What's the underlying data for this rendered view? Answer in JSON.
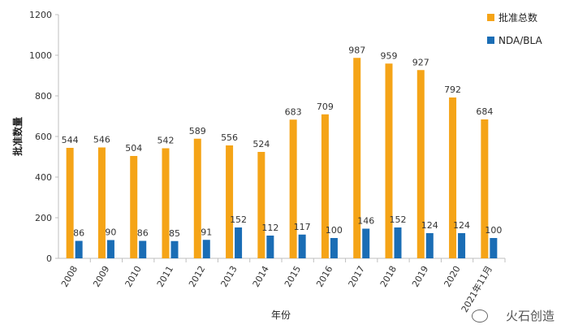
{
  "chart_data": {
    "type": "bar",
    "categories": [
      "2008",
      "2009",
      "2010",
      "2011",
      "2012",
      "2013",
      "2014",
      "2015",
      "2016",
      "2017",
      "2018",
      "2019",
      "2020",
      "2021年11月"
    ],
    "series": [
      {
        "name": "批准总数",
        "color": "#F5A417",
        "values": [
          544,
          546,
          504,
          542,
          589,
          556,
          524,
          683,
          709,
          987,
          959,
          927,
          792,
          684
        ]
      },
      {
        "name": "NDA/BLA",
        "color": "#1A6DB5",
        "values": [
          86,
          90,
          86,
          85,
          91,
          152,
          112,
          117,
          100,
          146,
          152,
          124,
          124,
          100
        ]
      }
    ],
    "xlabel": "年份",
    "ylabel": "批准数量",
    "ylim": [
      0,
      1200
    ],
    "yticks": [
      0,
      200,
      400,
      600,
      800,
      1000,
      1200
    ],
    "grid": false,
    "legend": "top-right"
  },
  "watermark": {
    "text": "火石创造",
    "icon": "wechat-icon"
  }
}
